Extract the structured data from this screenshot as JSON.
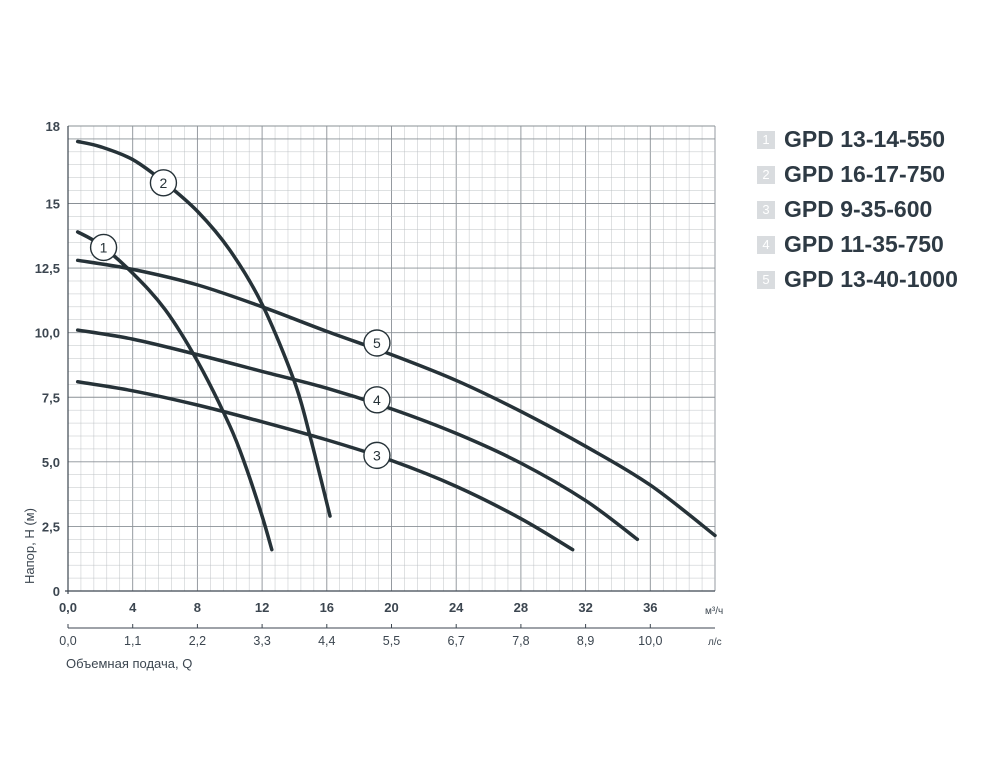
{
  "chart_data": {
    "type": "line",
    "title": "",
    "xlabel": "Объемная подача, Q",
    "ylabel": "Напор, H (м)",
    "x_unit": "м³/ч",
    "x2_unit": "л/с",
    "xlim": [
      0,
      40
    ],
    "ylim": [
      0,
      18
    ],
    "y_ticks": [
      0,
      2.5,
      5.0,
      7.5,
      10.0,
      12.5,
      15,
      18
    ],
    "y_tick_labels": [
      "0",
      "2,5",
      "5,0",
      "7,5",
      "10,0",
      "12,5",
      "15",
      "18"
    ],
    "x_ticks": [
      0,
      4,
      8,
      12,
      16,
      20,
      24,
      28,
      32,
      36
    ],
    "x_tick_labels": [
      "0,0",
      "4",
      "8",
      "12",
      "16",
      "20",
      "24",
      "28",
      "32",
      "36"
    ],
    "x2_tick_labels": [
      "0,0",
      "1,1",
      "2,2",
      "3,3",
      "4,4",
      "5,5",
      "6,7",
      "7,8",
      "8,9",
      "10,0"
    ],
    "grid": true,
    "legend_position": "right",
    "series": [
      {
        "label": "1",
        "name": "GPD 13-14-550",
        "x": [
          0.6,
          2,
          4,
          6,
          8,
          10,
          11,
          12,
          12.6
        ],
        "y": [
          13.9,
          13.4,
          12.3,
          10.9,
          8.9,
          6.4,
          4.8,
          2.9,
          1.6
        ],
        "label_at": [
          2.2,
          13.3
        ]
      },
      {
        "label": "2",
        "name": "GPD 16-17-750",
        "x": [
          0.6,
          2,
          4,
          6,
          8,
          10,
          12,
          14,
          15,
          16.2
        ],
        "y": [
          17.4,
          17.2,
          16.7,
          15.8,
          14.7,
          13.2,
          11.1,
          8.1,
          5.9,
          2.9
        ],
        "label_at": [
          5.9,
          15.8
        ]
      },
      {
        "label": "3",
        "name": "GPD 9-35-600",
        "x": [
          0.6,
          4,
          8,
          12,
          16,
          20,
          24,
          28,
          31.2
        ],
        "y": [
          8.1,
          7.75,
          7.2,
          6.55,
          5.85,
          5.05,
          4.05,
          2.8,
          1.6
        ],
        "label_at": [
          19.1,
          5.25
        ]
      },
      {
        "label": "4",
        "name": "GPD 11-35-750",
        "x": [
          0.6,
          4,
          8,
          12,
          16,
          20,
          24,
          28,
          32,
          35.2
        ],
        "y": [
          10.1,
          9.75,
          9.15,
          8.5,
          7.85,
          7.05,
          6.1,
          4.95,
          3.5,
          2.0
        ],
        "label_at": [
          19.1,
          7.4
        ]
      },
      {
        "label": "5",
        "name": "GPD 13-40-1000",
        "x": [
          0.6,
          4,
          8,
          12,
          16,
          20,
          24,
          28,
          32,
          36,
          40
        ],
        "y": [
          12.8,
          12.45,
          11.85,
          11.0,
          10.05,
          9.15,
          8.15,
          6.95,
          5.6,
          4.1,
          2.15
        ],
        "label_at": [
          19.1,
          9.6
        ]
      }
    ]
  },
  "legend": [
    {
      "num": "1",
      "name": "GPD 13-14-550"
    },
    {
      "num": "2",
      "name": "GPD 16-17-750"
    },
    {
      "num": "3",
      "name": "GPD 9-35-600"
    },
    {
      "num": "4",
      "name": "GPD 11-35-750"
    },
    {
      "num": "5",
      "name": "GPD 13-40-1000"
    }
  ],
  "colors": {
    "curve": "#263238",
    "grid_minor": "#b8bcc0",
    "grid_major": "#8a9096",
    "legend_box": "#d9dcdf",
    "text": "#3c4650"
  }
}
